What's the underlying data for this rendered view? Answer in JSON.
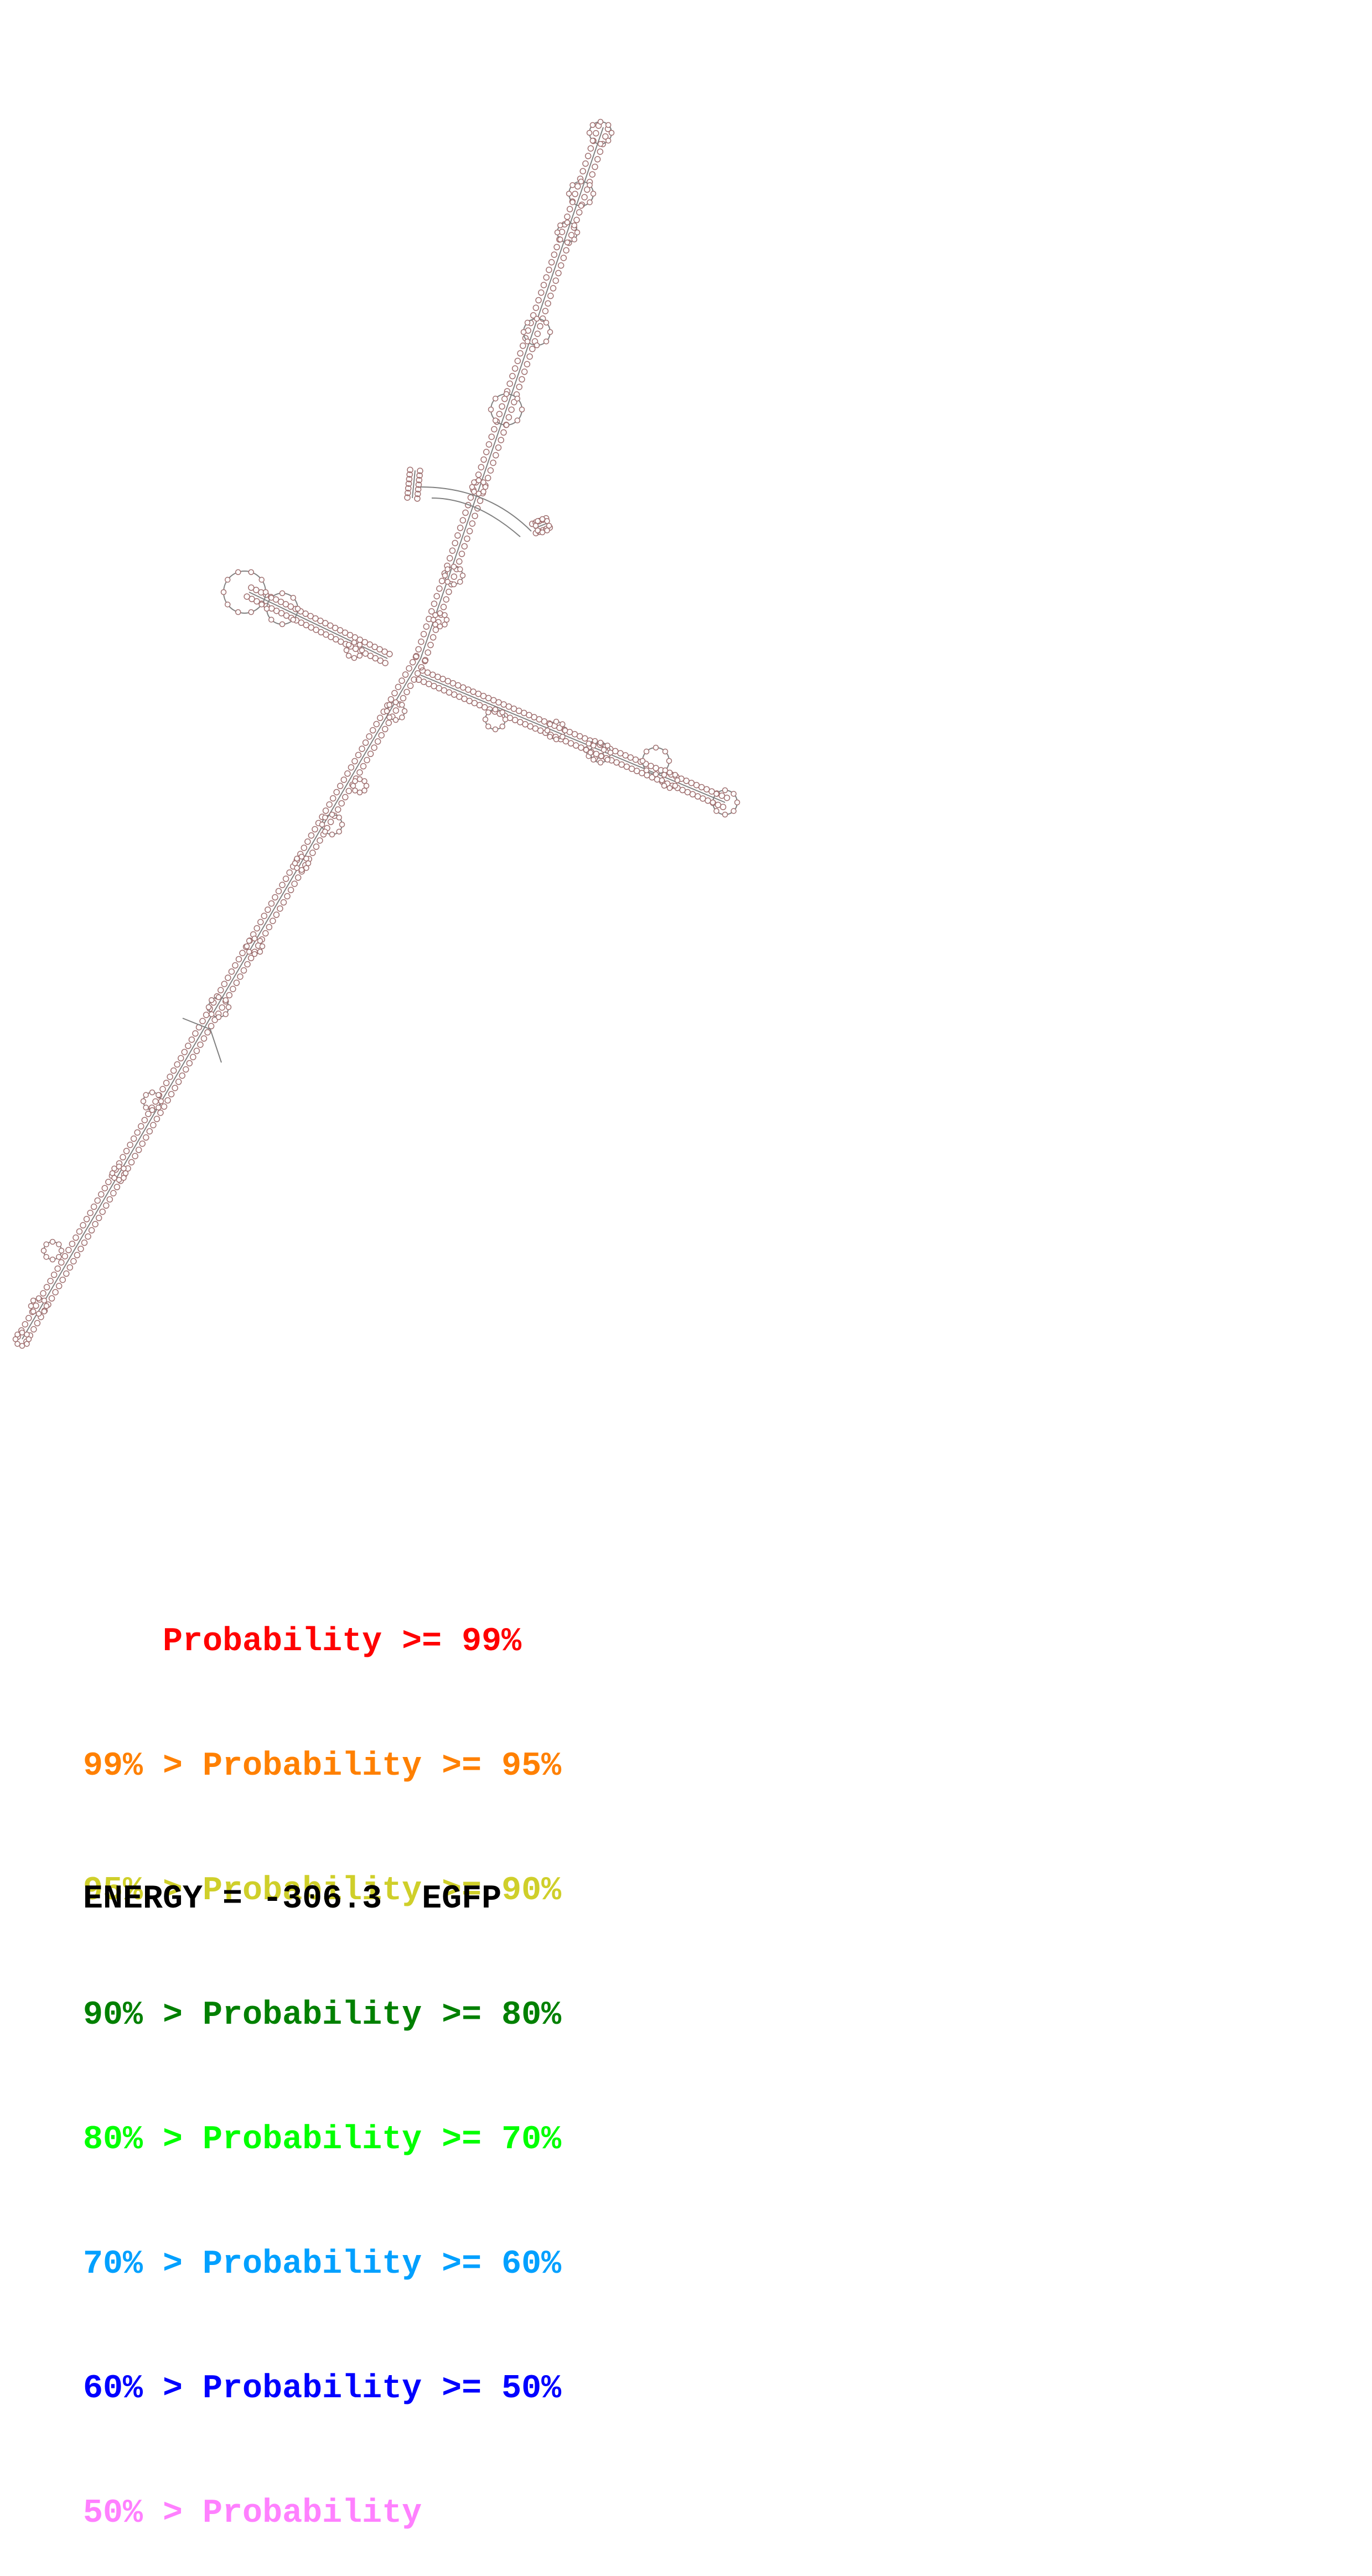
{
  "legend": [
    {
      "prefix": "    ",
      "text": "Probability >= 99%",
      "color": "#ff0000"
    },
    {
      "prefix": "99% > ",
      "text": "Probability >= 95%",
      "color": "#ff8000"
    },
    {
      "prefix": "95% > ",
      "text": "Probability >= 90%",
      "color": "#cfcf2a"
    },
    {
      "prefix": "90% > ",
      "text": "Probability >= 80%",
      "color": "#008000"
    },
    {
      "prefix": "80% > ",
      "text": "Probability >= 70%",
      "color": "#00ff00"
    },
    {
      "prefix": "70% > ",
      "text": "Probability >= 60%",
      "color": "#00a0ff"
    },
    {
      "prefix": "60% > ",
      "text": "Probability >= 50%",
      "color": "#0000ff"
    },
    {
      "prefix": "50% > ",
      "text": "Probability",
      "color": "#ff80ff"
    }
  ],
  "energy": {
    "label": "ENERGY = ",
    "value": "-306.3",
    "name": "EGFP"
  },
  "structure": {
    "backbone_color": "#808080",
    "base_color": "#a07070"
  }
}
